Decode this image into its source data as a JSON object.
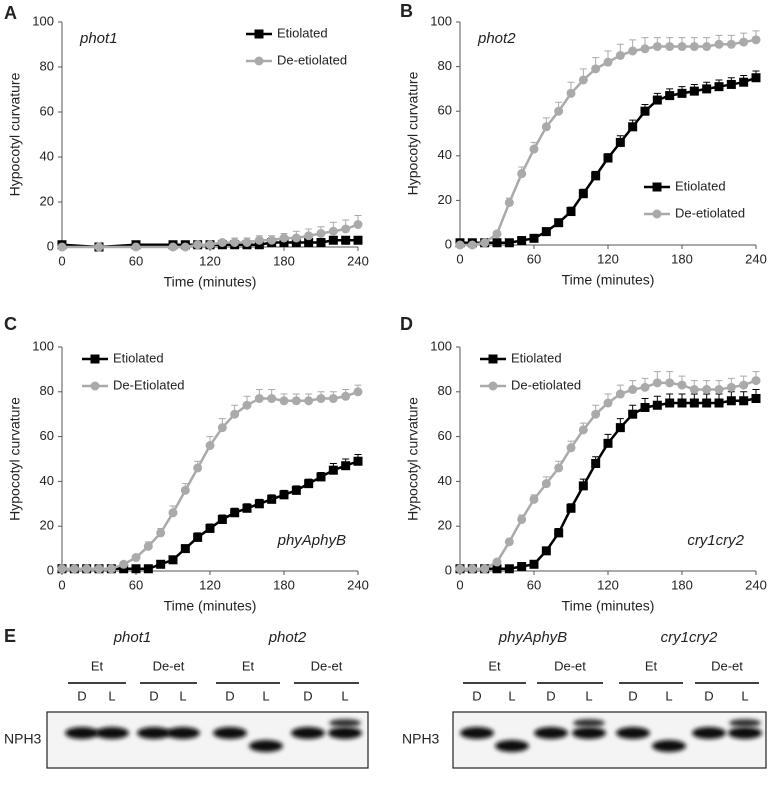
{
  "chart_data": [
    {
      "type": "line",
      "panel_label": "A",
      "annotation": "phot1",
      "annotation_position": "upper left",
      "x_label": "Time (minutes)",
      "y_label": "Hypocotyl curvature",
      "x": [
        0,
        30,
        60,
        90,
        100,
        110,
        120,
        130,
        140,
        150,
        160,
        170,
        180,
        190,
        200,
        210,
        220,
        230,
        240
      ],
      "series": [
        {
          "name": "Etiolated",
          "color": "#000000",
          "marker": "square",
          "values": [
            1,
            0,
            1,
            1,
            1,
            1,
            1,
            1,
            1,
            1,
            1,
            2,
            2,
            2,
            2,
            2,
            3,
            3,
            3
          ],
          "errors": [
            0,
            0,
            0,
            1,
            1,
            1,
            1,
            1,
            1,
            1,
            1,
            1,
            1,
            1,
            1,
            1,
            1,
            1,
            1
          ]
        },
        {
          "name": "De-etiolated",
          "color": "#aaaaaa",
          "marker": "circle",
          "values": [
            0,
            0,
            0,
            0,
            0,
            1,
            1,
            2,
            2,
            2,
            3,
            3,
            4,
            4,
            5,
            6,
            7,
            8,
            10
          ],
          "errors": [
            0,
            0,
            0,
            1,
            1,
            1,
            1,
            1,
            2,
            2,
            2,
            2,
            2,
            3,
            3,
            3,
            4,
            4,
            4
          ]
        }
      ],
      "xlim": [
        0,
        240
      ],
      "xticks": [
        0,
        60,
        120,
        180,
        240
      ],
      "ylim": [
        0,
        100
      ],
      "yticks": [
        0,
        20,
        40,
        60,
        80,
        100
      ],
      "legend_position": "upper right"
    },
    {
      "type": "line",
      "panel_label": "B",
      "annotation": "phot2",
      "annotation_position": "upper left",
      "x_label": "Time (minutes)",
      "y_label": "Hypocotyl curvature",
      "x": [
        0,
        10,
        20,
        30,
        40,
        50,
        60,
        70,
        80,
        90,
        100,
        110,
        120,
        130,
        140,
        150,
        160,
        170,
        180,
        190,
        200,
        210,
        220,
        230,
        240
      ],
      "series": [
        {
          "name": "Etiolated",
          "color": "#000000",
          "marker": "square",
          "values": [
            1,
            1,
            1,
            1,
            1,
            2,
            3,
            6,
            10,
            15,
            23,
            31,
            39,
            46,
            53,
            60,
            65,
            67,
            68,
            69,
            70,
            71,
            72,
            73,
            75
          ],
          "errors": [
            0,
            0,
            0,
            0,
            1,
            1,
            1,
            1,
            1,
            2,
            2,
            2,
            2,
            3,
            3,
            3,
            3,
            3,
            3,
            3,
            3,
            3,
            3,
            3,
            3
          ]
        },
        {
          "name": "De-etiolated",
          "color": "#aaaaaa",
          "marker": "circle",
          "values": [
            0,
            0,
            1,
            5,
            19,
            32,
            43,
            53,
            60,
            68,
            74,
            79,
            82,
            85,
            87,
            88,
            89,
            89,
            89,
            89,
            89,
            90,
            90,
            91,
            92
          ],
          "errors": [
            0,
            0,
            0,
            1,
            2,
            3,
            3,
            4,
            4,
            5,
            5,
            5,
            5,
            5,
            5,
            5,
            4,
            4,
            4,
            4,
            4,
            4,
            4,
            4,
            4
          ]
        }
      ],
      "xlim": [
        0,
        240
      ],
      "xticks": [
        0,
        60,
        120,
        180,
        240
      ],
      "ylim": [
        0,
        100
      ],
      "yticks": [
        0,
        20,
        40,
        60,
        80,
        100
      ],
      "legend_position": "lower right"
    },
    {
      "type": "line",
      "panel_label": "C",
      "annotation": "phyAphyB",
      "annotation_position": "lower right",
      "x_label": "Time (minutes)",
      "y_label": "Hypocotyl curvature",
      "x": [
        0,
        10,
        20,
        30,
        40,
        50,
        60,
        70,
        80,
        90,
        100,
        110,
        120,
        130,
        140,
        150,
        160,
        170,
        180,
        190,
        200,
        210,
        220,
        230,
        240
      ],
      "series": [
        {
          "name": "Etiolated",
          "color": "#000000",
          "marker": "square",
          "values": [
            1,
            1,
            1,
            1,
            1,
            1,
            1,
            1,
            3,
            5,
            10,
            15,
            19,
            23,
            26,
            28,
            30,
            32,
            34,
            36,
            39,
            42,
            45,
            47,
            49
          ],
          "errors": [
            0,
            0,
            0,
            0,
            0,
            0,
            0,
            0,
            1,
            1,
            1,
            2,
            2,
            2,
            2,
            2,
            2,
            2,
            2,
            2,
            2,
            2,
            3,
            3,
            3
          ]
        },
        {
          "name": "De-Etiolated",
          "color": "#aaaaaa",
          "marker": "circle",
          "values": [
            1,
            1,
            1,
            1,
            1,
            3,
            6,
            11,
            17,
            26,
            36,
            46,
            56,
            64,
            70,
            74,
            77,
            77,
            76,
            76,
            76,
            77,
            77,
            78,
            80
          ],
          "errors": [
            0,
            0,
            0,
            0,
            1,
            1,
            1,
            2,
            2,
            3,
            3,
            3,
            4,
            4,
            4,
            4,
            4,
            4,
            3,
            3,
            3,
            3,
            3,
            3,
            3
          ]
        }
      ],
      "xlim": [
        0,
        240
      ],
      "xticks": [
        0,
        60,
        120,
        180,
        240
      ],
      "ylim": [
        0,
        100
      ],
      "yticks": [
        0,
        20,
        40,
        60,
        80,
        100
      ],
      "legend_position": "upper left"
    },
    {
      "type": "line",
      "panel_label": "D",
      "annotation": "cry1cry2",
      "annotation_position": "lower right",
      "x_label": "Time (minutes)",
      "y_label": "Hypocotyl curvature",
      "x": [
        0,
        10,
        20,
        30,
        40,
        50,
        60,
        70,
        80,
        90,
        100,
        110,
        120,
        130,
        140,
        150,
        160,
        170,
        180,
        190,
        200,
        210,
        220,
        230,
        240
      ],
      "series": [
        {
          "name": "Etiolated",
          "color": "#000000",
          "marker": "square",
          "values": [
            1,
            1,
            1,
            1,
            1,
            2,
            3,
            9,
            17,
            28,
            38,
            48,
            57,
            64,
            70,
            73,
            74,
            75,
            75,
            75,
            75,
            75,
            76,
            76,
            77
          ],
          "errors": [
            0,
            0,
            0,
            0,
            0,
            0,
            1,
            1,
            2,
            2,
            3,
            3,
            4,
            4,
            4,
            4,
            4,
            4,
            4,
            4,
            4,
            4,
            4,
            4,
            4
          ]
        },
        {
          "name": "De-etiolated",
          "color": "#aaaaaa",
          "marker": "circle",
          "values": [
            1,
            1,
            1,
            4,
            13,
            23,
            32,
            39,
            46,
            55,
            63,
            70,
            75,
            79,
            81,
            82,
            84,
            84,
            83,
            81,
            81,
            81,
            82,
            83,
            85
          ],
          "errors": [
            0,
            0,
            0,
            1,
            1,
            2,
            2,
            3,
            3,
            3,
            3,
            4,
            4,
            4,
            4,
            4,
            5,
            5,
            4,
            4,
            4,
            4,
            4,
            4,
            4
          ]
        }
      ],
      "xlim": [
        0,
        240
      ],
      "xticks": [
        0,
        60,
        120,
        180,
        240
      ],
      "ylim": [
        0,
        100
      ],
      "yticks": [
        0,
        20,
        40,
        60,
        80,
        100
      ],
      "legend_position": "upper left"
    }
  ],
  "blot": {
    "label": "E",
    "panels": [
      {
        "row_label": "NPH3",
        "groups": [
          {
            "name": "phot1",
            "conditions": [
              {
                "name": "Et",
                "lanes": [
                  "D",
                  "L"
                ]
              },
              {
                "name": "De-et",
                "lanes": [
                  "D",
                  "L"
                ]
              }
            ]
          },
          {
            "name": "phot2",
            "conditions": [
              {
                "name": "Et",
                "lanes": [
                  "D",
                  "L"
                ]
              },
              {
                "name": "De-et",
                "lanes": [
                  "D",
                  "L"
                ]
              }
            ]
          }
        ]
      },
      {
        "row_label": "NPH3",
        "groups": [
          {
            "name": "phyAphyB",
            "conditions": [
              {
                "name": "Et",
                "lanes": [
                  "D",
                  "L"
                ]
              },
              {
                "name": "De-et",
                "lanes": [
                  "D",
                  "L"
                ]
              }
            ]
          },
          {
            "name": "cry1cry2",
            "conditions": [
              {
                "name": "Et",
                "lanes": [
                  "D",
                  "L"
                ]
              },
              {
                "name": "De-et",
                "lanes": [
                  "D",
                  "L"
                ]
              }
            ]
          }
        ]
      }
    ]
  }
}
